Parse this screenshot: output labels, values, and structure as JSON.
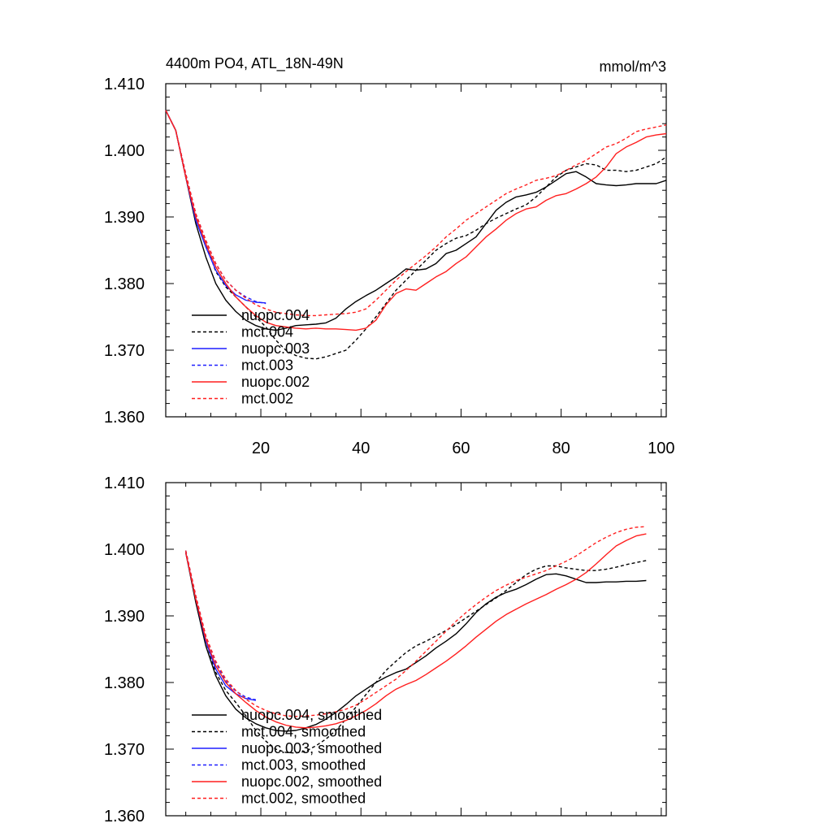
{
  "colors": {
    "black": "#000000",
    "blue": "#1f1fff",
    "red": "#ff1f1f"
  },
  "chart_data": [
    {
      "type": "line",
      "title": "4400m PO4, ATL_18N-49N",
      "units": "mmol/m^3",
      "xlabel": "",
      "ylabel": "",
      "xlim": [
        1,
        101
      ],
      "ylim": [
        1.36,
        1.41
      ],
      "xticks": [
        20,
        40,
        60,
        80,
        100
      ],
      "xtick_labels": [
        "20",
        "40",
        "60",
        "80",
        "100"
      ],
      "yticks": [
        1.36,
        1.37,
        1.38,
        1.39,
        1.4,
        1.41
      ],
      "ytick_labels": [
        "1.360",
        "1.370",
        "1.380",
        "1.390",
        "1.400",
        "1.410"
      ],
      "legend_position": "bottom-left",
      "series": [
        {
          "name": "nuopc.004",
          "color": "black",
          "dash": "solid",
          "x": [
            1,
            3,
            5,
            7,
            9,
            11,
            13,
            15,
            17,
            19,
            21,
            23,
            25,
            27,
            29,
            31,
            33,
            35,
            37,
            39,
            41,
            43,
            45,
            47,
            49,
            51,
            53,
            55,
            57,
            59,
            61,
            63,
            65,
            67,
            69,
            71,
            73,
            75,
            77,
            79,
            81,
            83,
            85,
            87,
            89,
            91,
            93,
            95,
            97,
            99,
            101
          ],
          "y": [
            1.406,
            1.403,
            1.396,
            1.389,
            1.384,
            1.38,
            1.3775,
            1.3758,
            1.3745,
            1.3737,
            1.3732,
            1.373,
            1.3733,
            1.3737,
            1.3738,
            1.3739,
            1.3741,
            1.3748,
            1.3762,
            1.3773,
            1.3782,
            1.379,
            1.38,
            1.381,
            1.3822,
            1.382,
            1.3822,
            1.383,
            1.3845,
            1.385,
            1.386,
            1.387,
            1.389,
            1.391,
            1.3922,
            1.393,
            1.3933,
            1.3937,
            1.3945,
            1.3955,
            1.3965,
            1.3968,
            1.396,
            1.395,
            1.3948,
            1.3947,
            1.3948,
            1.395,
            1.395,
            1.395,
            1.3955
          ]
        },
        {
          "name": "mct.004",
          "color": "black",
          "dash": "dash",
          "x": [
            1,
            3,
            5,
            7,
            9,
            11,
            13,
            15,
            17,
            19,
            21,
            23,
            25,
            27,
            29,
            31,
            33,
            35,
            37,
            39,
            41,
            43,
            45,
            47,
            49,
            51,
            53,
            55,
            57,
            59,
            61,
            63,
            65,
            67,
            69,
            71,
            73,
            75,
            77,
            79,
            81,
            83,
            85,
            87,
            89,
            91,
            93,
            95,
            97,
            99,
            101
          ],
          "y": [
            1.406,
            1.403,
            1.396,
            1.39,
            1.386,
            1.3818,
            1.3795,
            1.378,
            1.3765,
            1.375,
            1.3735,
            1.3715,
            1.37,
            1.3692,
            1.3688,
            1.3687,
            1.369,
            1.3695,
            1.37,
            1.3715,
            1.3732,
            1.375,
            1.377,
            1.379,
            1.3805,
            1.382,
            1.3835,
            1.385,
            1.386,
            1.3868,
            1.3872,
            1.388,
            1.389,
            1.3898,
            1.3905,
            1.3912,
            1.3918,
            1.393,
            1.3945,
            1.396,
            1.397,
            1.3975,
            1.398,
            1.3978,
            1.397,
            1.397,
            1.3968,
            1.397,
            1.3975,
            1.398,
            1.399
          ]
        },
        {
          "name": "nuopc.003",
          "color": "blue",
          "dash": "solid",
          "x": [
            1,
            3,
            5,
            7,
            9,
            11,
            13,
            15,
            17,
            19,
            21
          ],
          "y": [
            1.406,
            1.403,
            1.396,
            1.3895,
            1.3855,
            1.382,
            1.3797,
            1.3783,
            1.3775,
            1.3772,
            1.3771
          ]
        },
        {
          "name": "mct.003",
          "color": "blue",
          "dash": "dash",
          "x": [
            1,
            3,
            5,
            7,
            9,
            11,
            13,
            15,
            17,
            19,
            21
          ],
          "y": [
            1.406,
            1.403,
            1.3965,
            1.3905,
            1.3865,
            1.383,
            1.3805,
            1.379,
            1.378,
            1.3773,
            1.377
          ]
        },
        {
          "name": "nuopc.002",
          "color": "red",
          "dash": "solid",
          "x": [
            1,
            3,
            5,
            7,
            9,
            11,
            13,
            15,
            17,
            19,
            21,
            23,
            25,
            27,
            29,
            31,
            33,
            35,
            37,
            39,
            41,
            43,
            45,
            47,
            49,
            51,
            53,
            55,
            57,
            59,
            61,
            63,
            65,
            67,
            69,
            71,
            73,
            75,
            77,
            79,
            81,
            83,
            85,
            87,
            89,
            91,
            93,
            95,
            97,
            99,
            101
          ],
          "y": [
            1.406,
            1.403,
            1.396,
            1.39,
            1.386,
            1.3825,
            1.38,
            1.378,
            1.3765,
            1.3752,
            1.3742,
            1.3737,
            1.3735,
            1.3733,
            1.3732,
            1.3733,
            1.3732,
            1.3732,
            1.3731,
            1.373,
            1.3733,
            1.3745,
            1.3768,
            1.3785,
            1.3792,
            1.379,
            1.38,
            1.381,
            1.3818,
            1.383,
            1.384,
            1.3855,
            1.387,
            1.3882,
            1.3895,
            1.3905,
            1.3912,
            1.3915,
            1.3925,
            1.3932,
            1.3935,
            1.3942,
            1.395,
            1.396,
            1.3975,
            1.3995,
            1.4005,
            1.4012,
            1.402,
            1.4023,
            1.4025
          ]
        },
        {
          "name": "mct.002",
          "color": "red",
          "dash": "dash",
          "x": [
            1,
            3,
            5,
            7,
            9,
            11,
            13,
            15,
            17,
            19,
            21,
            23,
            25,
            27,
            29,
            31,
            33,
            35,
            37,
            39,
            41,
            43,
            45,
            47,
            49,
            51,
            53,
            55,
            57,
            59,
            61,
            63,
            65,
            67,
            69,
            71,
            73,
            75,
            77,
            79,
            81,
            83,
            85,
            87,
            89,
            91,
            93,
            95,
            97,
            99,
            101
          ],
          "y": [
            1.406,
            1.403,
            1.3965,
            1.3905,
            1.3865,
            1.383,
            1.3805,
            1.379,
            1.3778,
            1.3768,
            1.3762,
            1.3757,
            1.3755,
            1.3753,
            1.3752,
            1.3752,
            1.3753,
            1.3754,
            1.3755,
            1.3757,
            1.3762,
            1.3775,
            1.379,
            1.3805,
            1.3818,
            1.383,
            1.3842,
            1.3855,
            1.387,
            1.3882,
            1.3895,
            1.3905,
            1.3915,
            1.3925,
            1.3935,
            1.3942,
            1.3948,
            1.3955,
            1.3958,
            1.3962,
            1.397,
            1.3978,
            1.3985,
            1.3995,
            1.4005,
            1.401,
            1.4018,
            1.4028,
            1.4032,
            1.4035,
            1.4038
          ]
        }
      ]
    },
    {
      "type": "line",
      "title": "",
      "units": "",
      "xlabel": "",
      "ylabel": "",
      "xlim": [
        1,
        101
      ],
      "ylim": [
        1.36,
        1.41
      ],
      "xticks": [
        20,
        40,
        60,
        80,
        100
      ],
      "xtick_labels": [],
      "yticks": [
        1.36,
        1.37,
        1.38,
        1.39,
        1.4,
        1.41
      ],
      "ytick_labels": [
        "1.360",
        "1.370",
        "1.380",
        "1.390",
        "1.400",
        "1.410"
      ],
      "legend_position": "bottom-left",
      "series": [
        {
          "name": "nuopc.004, smoothed",
          "color": "black",
          "dash": "solid",
          "x": [
            5,
            7,
            9,
            11,
            13,
            15,
            17,
            19,
            21,
            23,
            25,
            27,
            29,
            31,
            33,
            35,
            37,
            39,
            41,
            43,
            45,
            47,
            49,
            51,
            53,
            55,
            57,
            59,
            61,
            63,
            65,
            67,
            69,
            71,
            73,
            75,
            77,
            79,
            81,
            83,
            85,
            87,
            89,
            91,
            93,
            95,
            97
          ],
          "y": [
            1.3995,
            1.392,
            1.3855,
            1.381,
            1.378,
            1.376,
            1.3747,
            1.3738,
            1.3732,
            1.3728,
            1.3727,
            1.3728,
            1.3732,
            1.3737,
            1.3745,
            1.3755,
            1.3767,
            1.378,
            1.379,
            1.38,
            1.3808,
            1.3815,
            1.382,
            1.383,
            1.384,
            1.3852,
            1.3862,
            1.3873,
            1.3888,
            1.3905,
            1.3918,
            1.3928,
            1.3935,
            1.394,
            1.3947,
            1.3955,
            1.3962,
            1.3963,
            1.396,
            1.3955,
            1.395,
            1.395,
            1.3951,
            1.3951,
            1.3952,
            1.3952,
            1.3953
          ]
        },
        {
          "name": "mct.004, smoothed",
          "color": "black",
          "dash": "dash",
          "x": [
            5,
            7,
            9,
            11,
            13,
            15,
            17,
            19,
            21,
            23,
            25,
            27,
            29,
            31,
            33,
            35,
            37,
            39,
            41,
            43,
            45,
            47,
            49,
            51,
            53,
            55,
            57,
            59,
            61,
            63,
            65,
            67,
            69,
            71,
            73,
            75,
            77,
            79,
            81,
            83,
            85,
            87,
            89,
            91,
            93,
            95,
            97
          ],
          "y": [
            1.3998,
            1.3925,
            1.3862,
            1.3815,
            1.3788,
            1.377,
            1.375,
            1.3728,
            1.3712,
            1.37,
            1.3695,
            1.3694,
            1.3697,
            1.3705,
            1.3715,
            1.3728,
            1.3745,
            1.3763,
            1.3782,
            1.38,
            1.3818,
            1.3832,
            1.3845,
            1.3855,
            1.3862,
            1.387,
            1.3878,
            1.3887,
            1.3897,
            1.3907,
            1.3917,
            1.3927,
            1.3938,
            1.395,
            1.3962,
            1.397,
            1.3975,
            1.3975,
            1.3972,
            1.397,
            1.3968,
            1.3968,
            1.397,
            1.3973,
            1.3977,
            1.398,
            1.3983
          ]
        },
        {
          "name": "nuopc.003, smoothed",
          "color": "blue",
          "dash": "solid",
          "x": [
            5,
            7,
            9,
            11,
            13,
            15,
            17,
            19
          ],
          "y": [
            1.3995,
            1.3925,
            1.3862,
            1.382,
            1.3795,
            1.3783,
            1.3776,
            1.3773
          ]
        },
        {
          "name": "mct.003, smoothed",
          "color": "blue",
          "dash": "dash",
          "x": [
            5,
            7,
            9,
            11,
            13,
            15,
            17,
            19
          ],
          "y": [
            1.3998,
            1.393,
            1.387,
            1.383,
            1.3802,
            1.3787,
            1.3778,
            1.3774
          ]
        },
        {
          "name": "nuopc.002, smoothed",
          "color": "red",
          "dash": "solid",
          "x": [
            5,
            7,
            9,
            11,
            13,
            15,
            17,
            19,
            21,
            23,
            25,
            27,
            29,
            31,
            33,
            35,
            37,
            39,
            41,
            43,
            45,
            47,
            49,
            51,
            53,
            55,
            57,
            59,
            61,
            63,
            65,
            67,
            69,
            71,
            73,
            75,
            77,
            79,
            81,
            83,
            85,
            87,
            89,
            91,
            93,
            95,
            97
          ],
          "y": [
            1.3995,
            1.3925,
            1.3865,
            1.3825,
            1.38,
            1.3783,
            1.377,
            1.3758,
            1.3748,
            1.3741,
            1.3736,
            1.3733,
            1.3732,
            1.3733,
            1.3735,
            1.3738,
            1.3743,
            1.375,
            1.3758,
            1.3768,
            1.378,
            1.379,
            1.3797,
            1.3803,
            1.3812,
            1.3822,
            1.3832,
            1.3843,
            1.3855,
            1.3868,
            1.388,
            1.3892,
            1.3902,
            1.391,
            1.3918,
            1.3925,
            1.3932,
            1.394,
            1.3947,
            1.3955,
            1.3965,
            1.3978,
            1.3992,
            1.4005,
            1.4013,
            1.402,
            1.4023
          ]
        },
        {
          "name": "mct.002, smoothed",
          "color": "red",
          "dash": "dash",
          "x": [
            5,
            7,
            9,
            11,
            13,
            15,
            17,
            19,
            21,
            23,
            25,
            27,
            29,
            31,
            33,
            35,
            37,
            39,
            41,
            43,
            45,
            47,
            49,
            51,
            53,
            55,
            57,
            59,
            61,
            63,
            65,
            67,
            69,
            71,
            73,
            75,
            77,
            79,
            81,
            83,
            85,
            87,
            89,
            91,
            93,
            95,
            97
          ],
          "y": [
            1.3998,
            1.393,
            1.387,
            1.3832,
            1.3805,
            1.3788,
            1.3775,
            1.3765,
            1.3758,
            1.3753,
            1.375,
            1.3749,
            1.375,
            1.3751,
            1.3753,
            1.3756,
            1.376,
            1.3766,
            1.3775,
            1.3785,
            1.3795,
            1.3805,
            1.3818,
            1.3832,
            1.3847,
            1.3862,
            1.3877,
            1.3892,
            1.3905,
            1.3917,
            1.3928,
            1.3938,
            1.3946,
            1.3953,
            1.3958,
            1.3963,
            1.3968,
            1.3975,
            1.3982,
            1.399,
            1.4,
            1.401,
            1.4018,
            1.4025,
            1.403,
            1.4033,
            1.4034
          ]
        }
      ]
    }
  ]
}
